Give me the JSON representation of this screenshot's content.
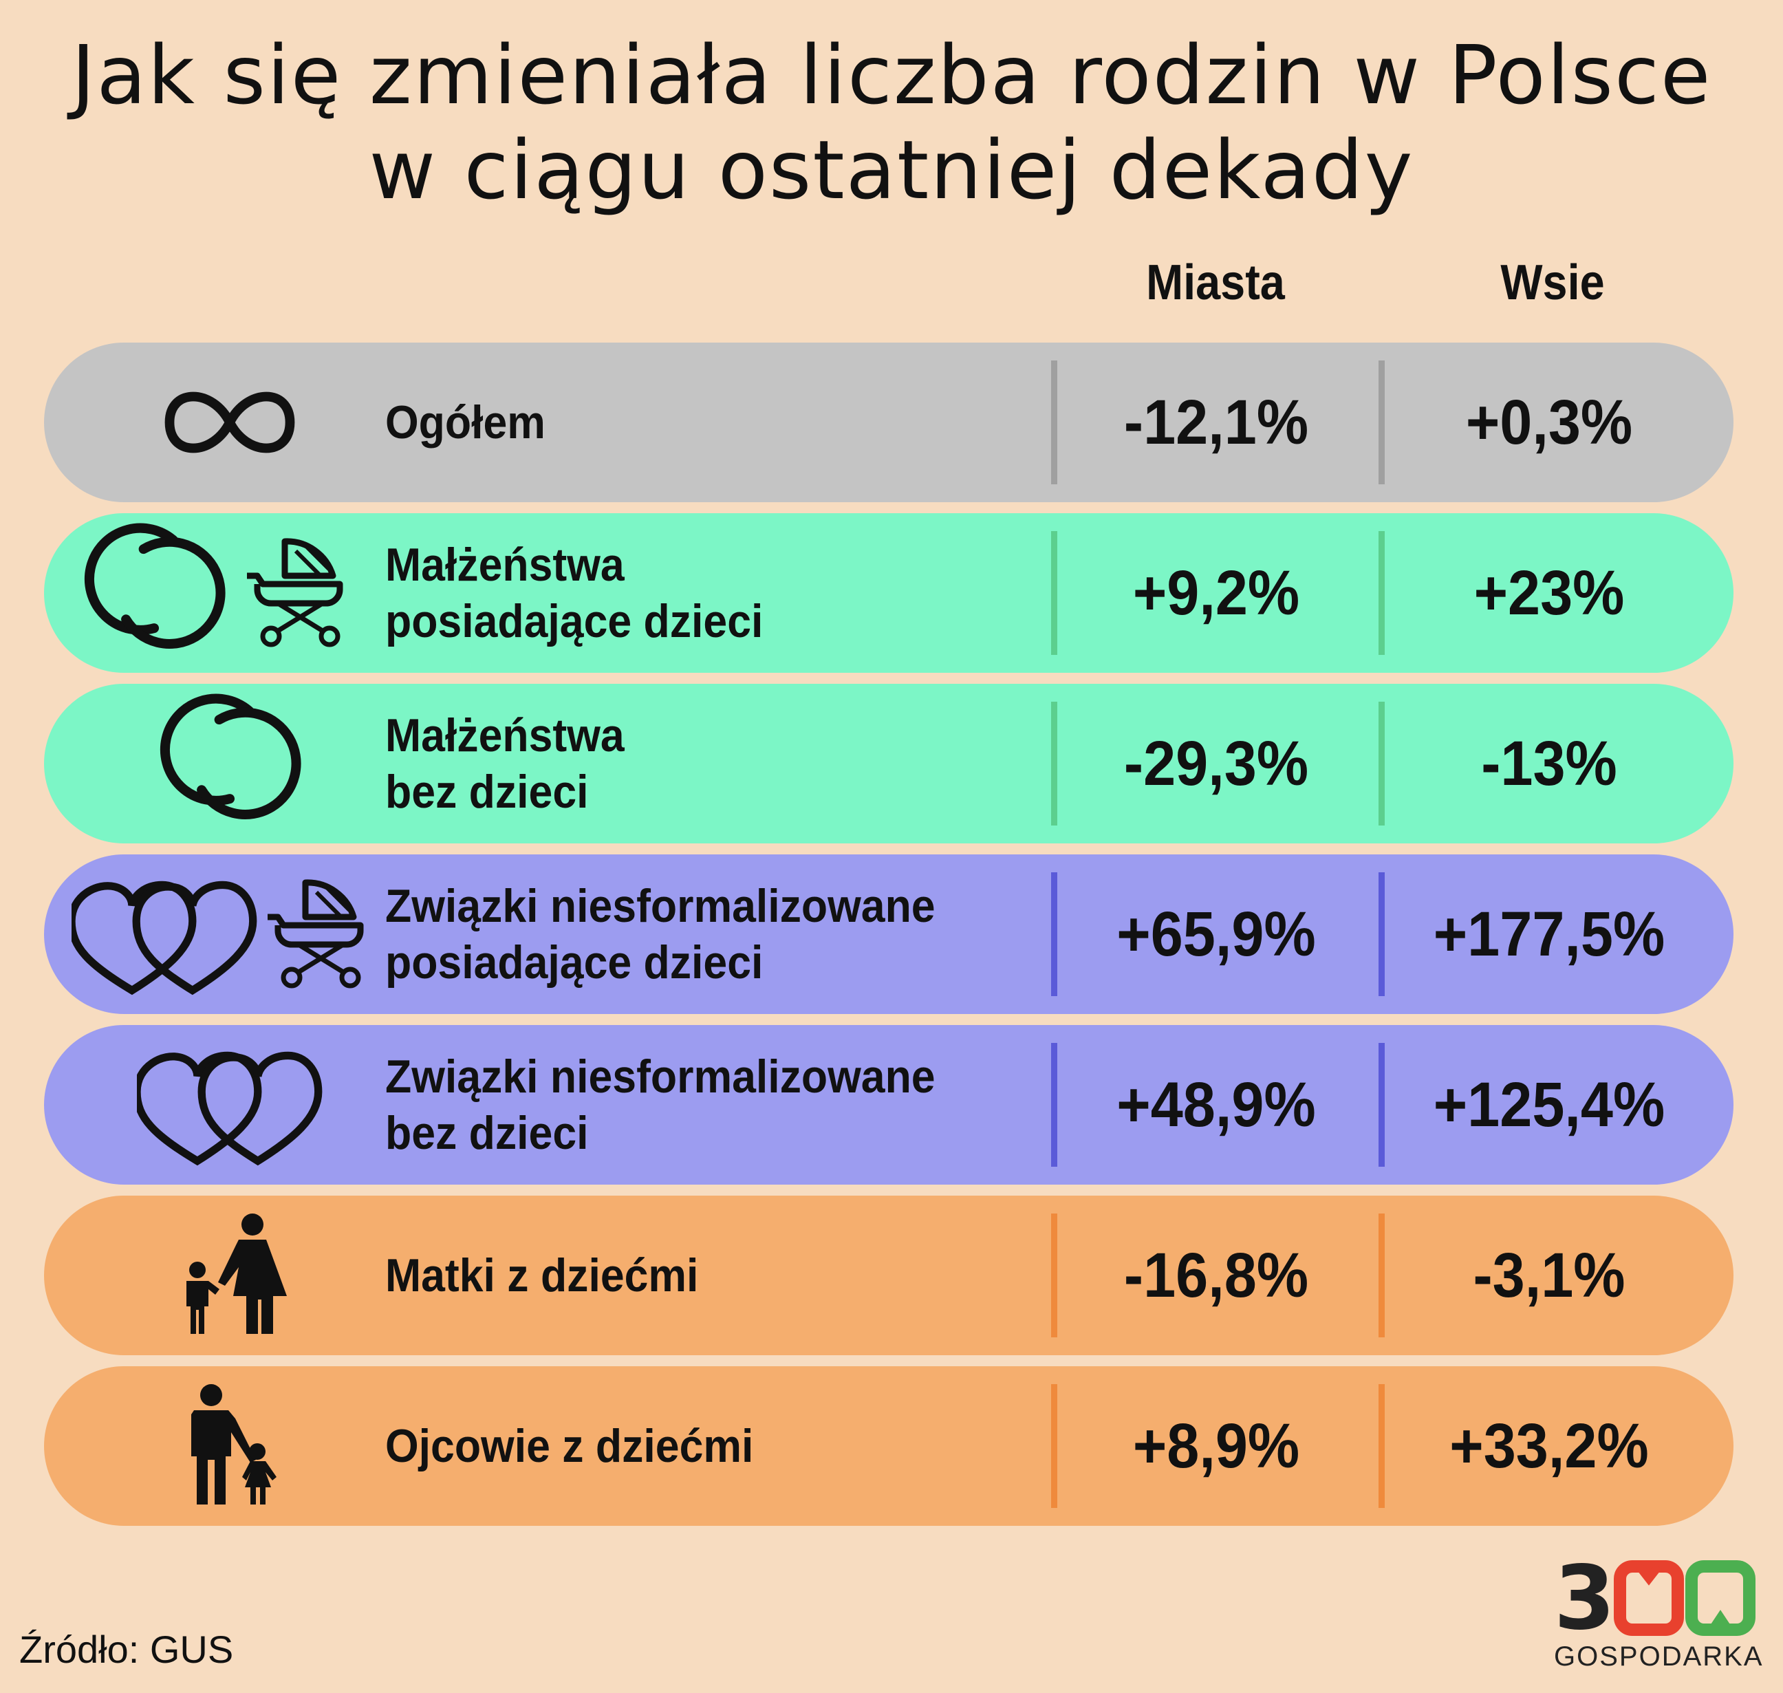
{
  "title_lines": [
    "Jak się zmieniała liczba rodzin w Polsce",
    "w ciągu ostatniej dekady"
  ],
  "columns": [
    "Miasta",
    "Wsie"
  ],
  "chart_data": {
    "type": "table",
    "title": "Jak się zmieniała liczba rodzin w Polsce w ciągu ostatniej dekady",
    "columns": [
      "Miasta",
      "Wsie"
    ],
    "rows": [
      {
        "label_lines": [
          "Ogółem"
        ],
        "values": [
          "-12,1%",
          "+0,3%"
        ],
        "icons": [
          "infinity-icon"
        ],
        "color": "#c4c4c4",
        "sep_color": "#a0a0a0"
      },
      {
        "label_lines": [
          "Małżeństwa",
          "posiadające dzieci"
        ],
        "values": [
          "+9,2%",
          "+23%"
        ],
        "icons": [
          "wedding-rings-icon",
          "baby-stroller-icon"
        ],
        "color": "#7cf6c6",
        "sep_color": "#5ccf8e"
      },
      {
        "label_lines": [
          "Małżeństwa",
          "bez dzieci"
        ],
        "values": [
          "-29,3%",
          "-13%"
        ],
        "icons": [
          "wedding-rings-icon"
        ],
        "color": "#7cf6c6",
        "sep_color": "#5ccf8e"
      },
      {
        "label_lines": [
          "Związki niesformalizowane",
          "posiadające dzieci"
        ],
        "values": [
          "+65,9%",
          "+177,5%"
        ],
        "icons": [
          "two-hearts-icon",
          "baby-stroller-icon"
        ],
        "color": "#9c9cf0",
        "sep_color": "#5a5ad8"
      },
      {
        "label_lines": [
          "Związki niesformalizowane",
          "bez dzieci"
        ],
        "values": [
          "+48,9%",
          "+125,4%"
        ],
        "icons": [
          "two-hearts-icon"
        ],
        "color": "#9c9cf0",
        "sep_color": "#5a5ad8"
      },
      {
        "label_lines": [
          "Matki z dziećmi"
        ],
        "values": [
          "-16,8%",
          "-3,1%"
        ],
        "icons": [
          "mother-child-icon"
        ],
        "color": "#f5ae6e",
        "sep_color": "#ef8a3c"
      },
      {
        "label_lines": [
          "Ojcowie z dziećmi"
        ],
        "values": [
          "+8,9%",
          "+33,2%"
        ],
        "icons": [
          "father-child-icon"
        ],
        "color": "#f5ae6e",
        "sep_color": "#ef8a3c"
      }
    ]
  },
  "source": "Źródło: GUS",
  "logo": {
    "digits": "300",
    "text": "GOSPODARKA",
    "colors": [
      "#222222",
      "#e8412e",
      "#4caf50"
    ]
  }
}
